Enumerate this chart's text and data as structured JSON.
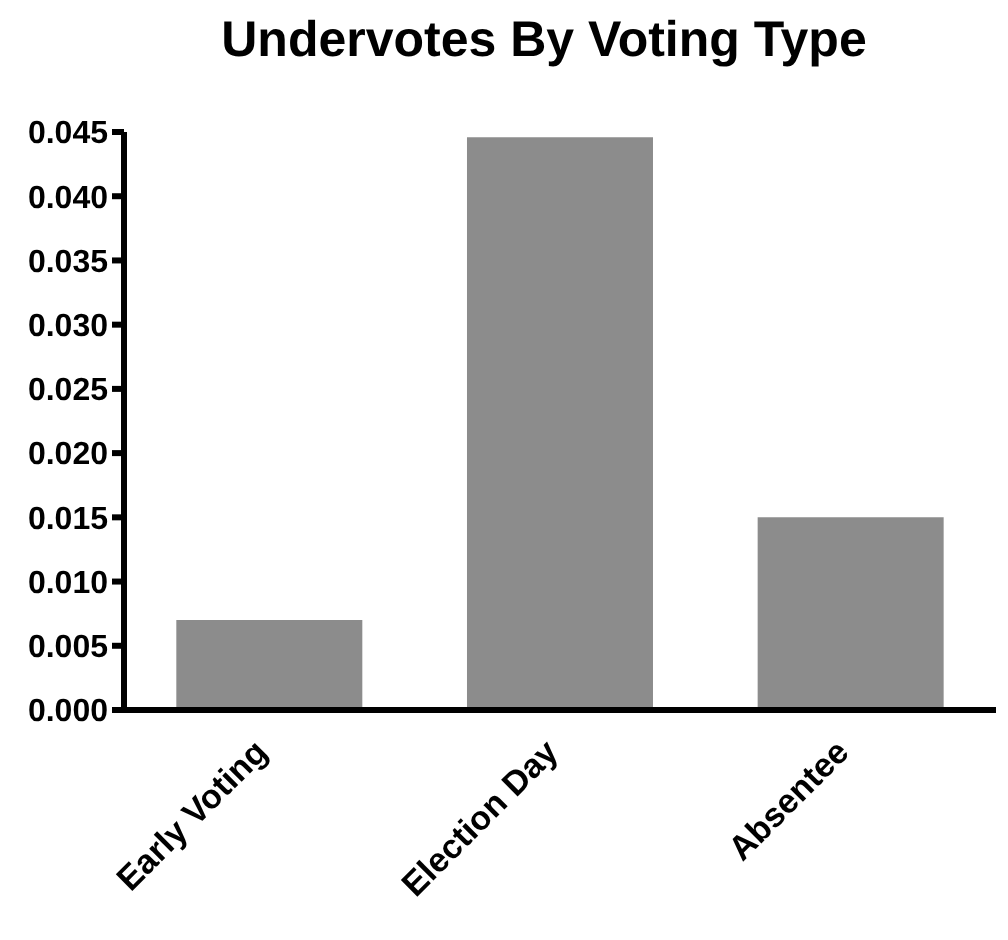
{
  "chart_data": {
    "type": "bar",
    "title": "Undervotes By Voting Type",
    "categories": [
      "Early Voting",
      "Election Day",
      "Absentee"
    ],
    "values": [
      0.007,
      0.0446,
      0.015
    ],
    "color": "#8c8c8c",
    "ylim": [
      0,
      0.045
    ],
    "yticks": [
      {
        "value": 0,
        "label": "0.000"
      },
      {
        "value": 0.005,
        "label": "0.005"
      },
      {
        "value": 0.01,
        "label": "0.010"
      },
      {
        "value": 0.015,
        "label": "0.015"
      },
      {
        "value": 0.02,
        "label": "0.020"
      },
      {
        "value": 0.025,
        "label": "0.025"
      },
      {
        "value": 0.03,
        "label": "0.030"
      },
      {
        "value": 0.035,
        "label": "0.035"
      },
      {
        "value": 0.04,
        "label": "0.040"
      },
      {
        "value": 0.045,
        "label": "0.045"
      }
    ],
    "grid": false
  }
}
